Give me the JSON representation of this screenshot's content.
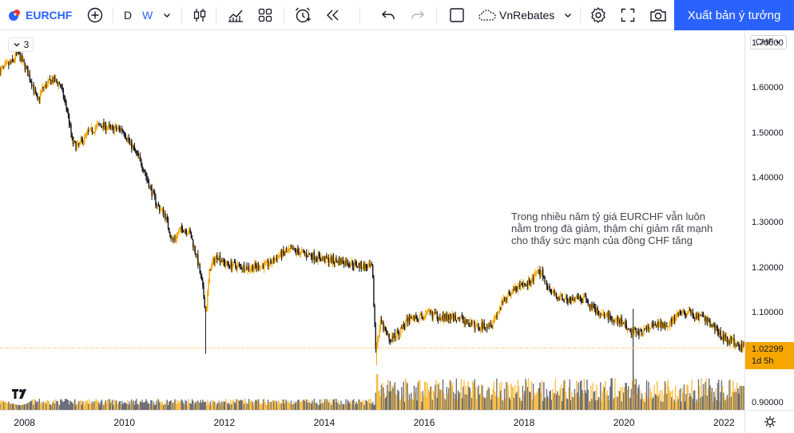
{
  "toolbar": {
    "symbol": "EURCHF",
    "interval_d": "D",
    "interval_w": "W",
    "cloud_layout_name": "VnRebates",
    "publish_label": "Xuất bản ý tưởng"
  },
  "legend": {
    "indicator_count": "3"
  },
  "annotation": {
    "lines": [
      "Trong nhiều năm tỷ giá EURCHF vẫn luôn",
      "nằm trong đà giảm, thậm chí giảm rất mạnh",
      "cho thấy sức mạnh của đồng CHF tăng"
    ]
  },
  "price_axis": {
    "currency": "CHF",
    "current_price": "1.02299",
    "countdown": "1d 5h"
  },
  "colors": {
    "accent": "#2962ff",
    "bull": "#f7a600",
    "bear": "#131722",
    "last_price_line": "#f7a600"
  },
  "chart_data": {
    "type": "candlestick",
    "symbol": "EURCHF",
    "interval": "W",
    "y_ticks": [
      1.7,
      1.6,
      1.5,
      1.4,
      1.3,
      1.2,
      1.1,
      0.9
    ],
    "y_tick_labels": [
      "1.70000",
      "1.60000",
      "1.50000",
      "1.40000",
      "1.30000",
      "1.20000",
      "1.10000",
      "0.90000"
    ],
    "x_ticks": [
      2008,
      2010,
      2012,
      2014,
      2016,
      2018,
      2020,
      2022
    ],
    "x_tick_labels": [
      "2008",
      "2010",
      "2012",
      "2014",
      "2016",
      "2018",
      "2020",
      "2022"
    ],
    "x_range": [
      2007.5,
      2022.4
    ],
    "y_range": [
      0.885,
      1.73
    ],
    "last_price": 1.02299,
    "price_path": [
      [
        2007.5,
        1.64
      ],
      [
        2007.75,
        1.66
      ],
      [
        2007.85,
        1.68
      ],
      [
        2008.0,
        1.65
      ],
      [
        2008.15,
        1.61
      ],
      [
        2008.25,
        1.57
      ],
      [
        2008.35,
        1.6
      ],
      [
        2008.55,
        1.62
      ],
      [
        2008.7,
        1.61
      ],
      [
        2008.85,
        1.55
      ],
      [
        2008.95,
        1.48
      ],
      [
        2009.05,
        1.47
      ],
      [
        2009.25,
        1.5
      ],
      [
        2009.5,
        1.52
      ],
      [
        2009.75,
        1.51
      ],
      [
        2009.95,
        1.51
      ],
      [
        2010.15,
        1.47
      ],
      [
        2010.35,
        1.43
      ],
      [
        2010.5,
        1.38
      ],
      [
        2010.65,
        1.34
      ],
      [
        2010.8,
        1.32
      ],
      [
        2010.95,
        1.26
      ],
      [
        2011.15,
        1.29
      ],
      [
        2011.3,
        1.28
      ],
      [
        2011.45,
        1.22
      ],
      [
        2011.55,
        1.16
      ],
      [
        2011.62,
        1.1
      ],
      [
        2011.7,
        1.2
      ],
      [
        2011.85,
        1.23
      ],
      [
        2012.0,
        1.21
      ],
      [
        2012.5,
        1.201
      ],
      [
        2012.9,
        1.21
      ],
      [
        2013.1,
        1.23
      ],
      [
        2013.35,
        1.24
      ],
      [
        2013.7,
        1.23
      ],
      [
        2014.0,
        1.22
      ],
      [
        2014.4,
        1.215
      ],
      [
        2014.75,
        1.205
      ],
      [
        2014.95,
        1.2
      ],
      [
        2015.02,
        1.02
      ],
      [
        2015.12,
        1.08
      ],
      [
        2015.3,
        1.04
      ],
      [
        2015.5,
        1.06
      ],
      [
        2015.7,
        1.09
      ],
      [
        2015.9,
        1.09
      ],
      [
        2016.1,
        1.1
      ],
      [
        2016.4,
        1.09
      ],
      [
        2016.7,
        1.09
      ],
      [
        2016.9,
        1.075
      ],
      [
        2017.1,
        1.07
      ],
      [
        2017.35,
        1.08
      ],
      [
        2017.5,
        1.11
      ],
      [
        2017.65,
        1.14
      ],
      [
        2017.9,
        1.16
      ],
      [
        2018.1,
        1.17
      ],
      [
        2018.33,
        1.195
      ],
      [
        2018.45,
        1.16
      ],
      [
        2018.6,
        1.14
      ],
      [
        2018.9,
        1.13
      ],
      [
        2019.2,
        1.13
      ],
      [
        2019.5,
        1.1
      ],
      [
        2019.75,
        1.09
      ],
      [
        2019.95,
        1.08
      ],
      [
        2020.1,
        1.06
      ],
      [
        2020.2,
        1.06
      ],
      [
        2020.35,
        1.06
      ],
      [
        2020.55,
        1.07
      ],
      [
        2020.75,
        1.075
      ],
      [
        2020.95,
        1.08
      ],
      [
        2021.1,
        1.1
      ],
      [
        2021.3,
        1.1
      ],
      [
        2021.5,
        1.09
      ],
      [
        2021.7,
        1.08
      ],
      [
        2021.85,
        1.06
      ],
      [
        2021.95,
        1.05
      ],
      [
        2022.05,
        1.04
      ],
      [
        2022.15,
        1.04
      ],
      [
        2022.25,
        1.03
      ],
      [
        2022.35,
        1.023
      ]
    ]
  }
}
